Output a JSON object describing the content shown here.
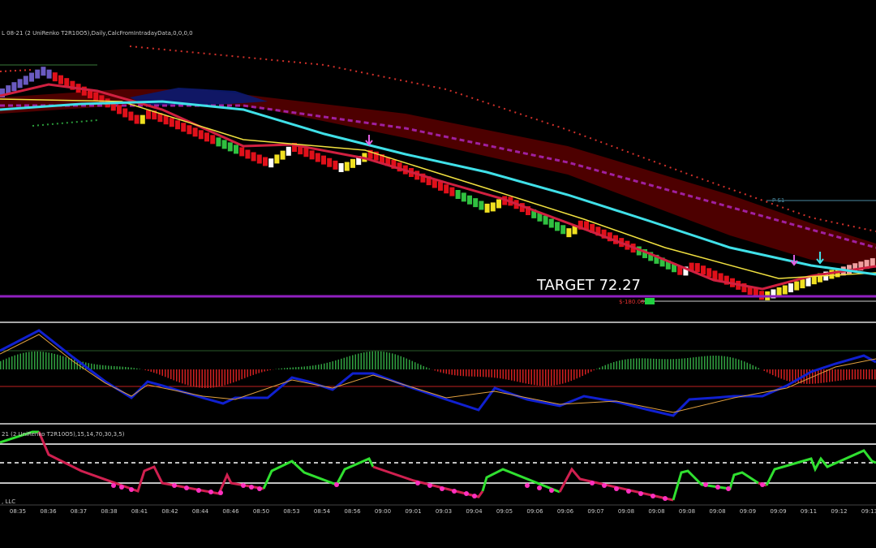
{
  "header": {
    "price_label": "L 08-21 (2 UniRenko T2R10O5),Daily,CalcFromIntradayData,0,0,0,0"
  },
  "price_panel": {
    "target_label": "TARGET 72.27",
    "pivot_label": "P S1",
    "pnl_label": "$-180.00"
  },
  "lower_panel": {
    "indicator_label": "21 (2 UniRenko T2R10O5),15,14,70,30,3,5)",
    "footer_label": ", LLC"
  },
  "time_axis": {
    "labels": [
      "08:35",
      "08:36",
      "08:37",
      "08:38",
      "08:41",
      "08:42",
      "08:44",
      "08:46",
      "08:50",
      "08:53",
      "08:54",
      "08:56",
      "09:00",
      "09:01",
      "09:03",
      "09:04",
      "09:05",
      "09:06",
      "09:06",
      "09:07",
      "09:08",
      "09:08",
      "09:08",
      "09:08",
      "09:09",
      "09:09",
      "09:11",
      "09:12",
      "09:13"
    ]
  }
}
